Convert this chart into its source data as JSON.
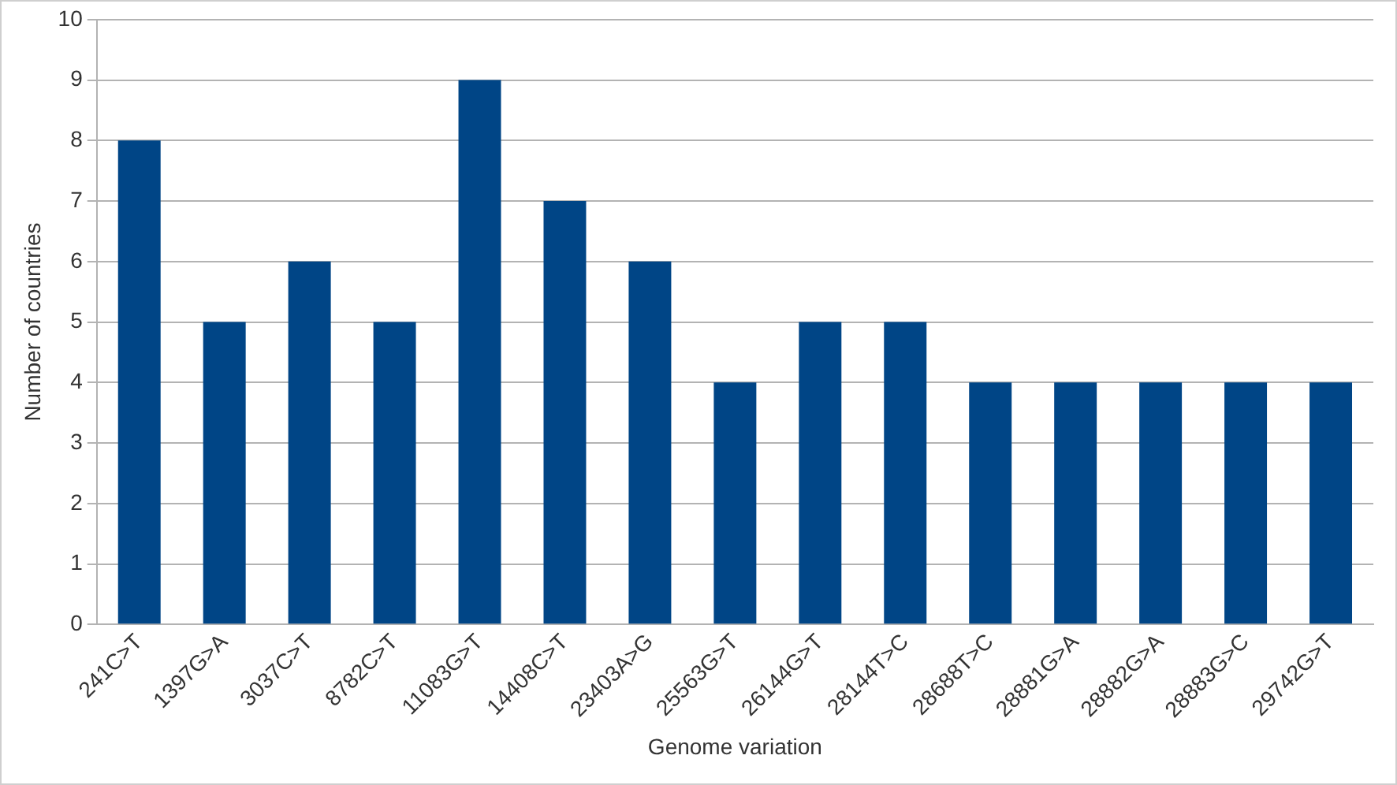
{
  "chart_data": {
    "type": "bar",
    "xlabel": "Genome variation",
    "ylabel": "Number of countries",
    "categories": [
      "241C>T",
      "1397G>A",
      "3037C>T",
      "8782C>T",
      "11083G>T",
      "14408C>T",
      "23403A>G",
      "25563G>T",
      "26144G>T",
      "28144T>C",
      "28688T>C",
      "28881G>A",
      "28882G>A",
      "28883G>C",
      "29742G>T"
    ],
    "values": [
      8,
      5,
      6,
      5,
      9,
      7,
      6,
      4,
      5,
      5,
      4,
      4,
      4,
      4,
      4
    ],
    "color": "#004586",
    "ylim": [
      0,
      10
    ],
    "yticks": [
      0,
      1,
      2,
      3,
      4,
      5,
      6,
      7,
      8,
      9,
      10
    ],
    "grid": "y",
    "legend": false
  }
}
